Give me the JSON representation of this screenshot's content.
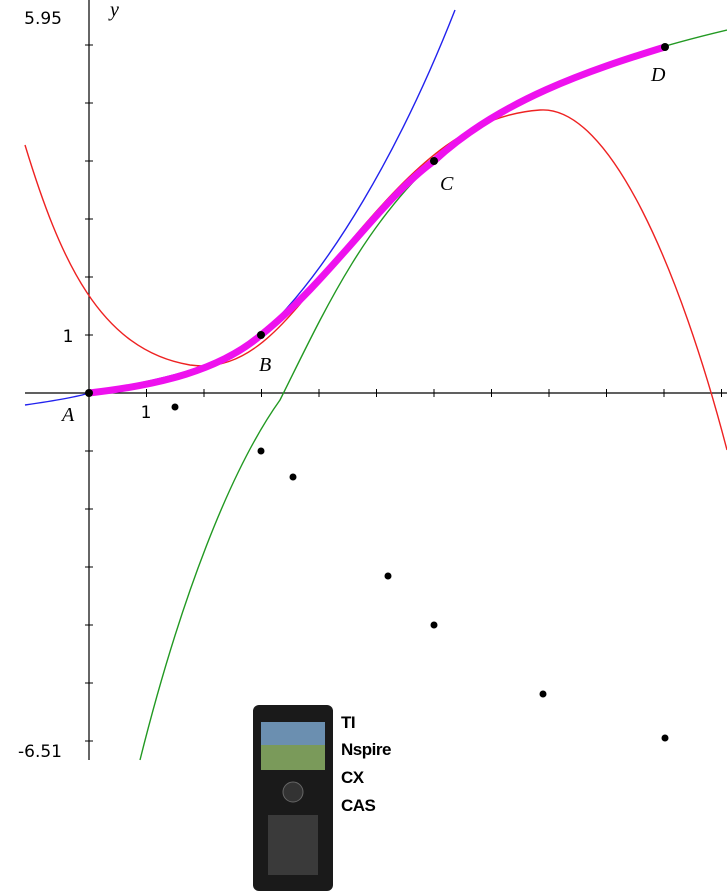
{
  "graph": {
    "axis_labels": {
      "y": "y",
      "x_tick": "1",
      "y_tick": "1",
      "y_max": "5.95",
      "y_min": "-6.51"
    },
    "points": [
      {
        "label": "A"
      },
      {
        "label": "B"
      },
      {
        "label": "C"
      },
      {
        "label": "D"
      }
    ]
  },
  "device_caption": [
    "TI",
    "Nspire",
    "CX",
    "CAS"
  ]
}
